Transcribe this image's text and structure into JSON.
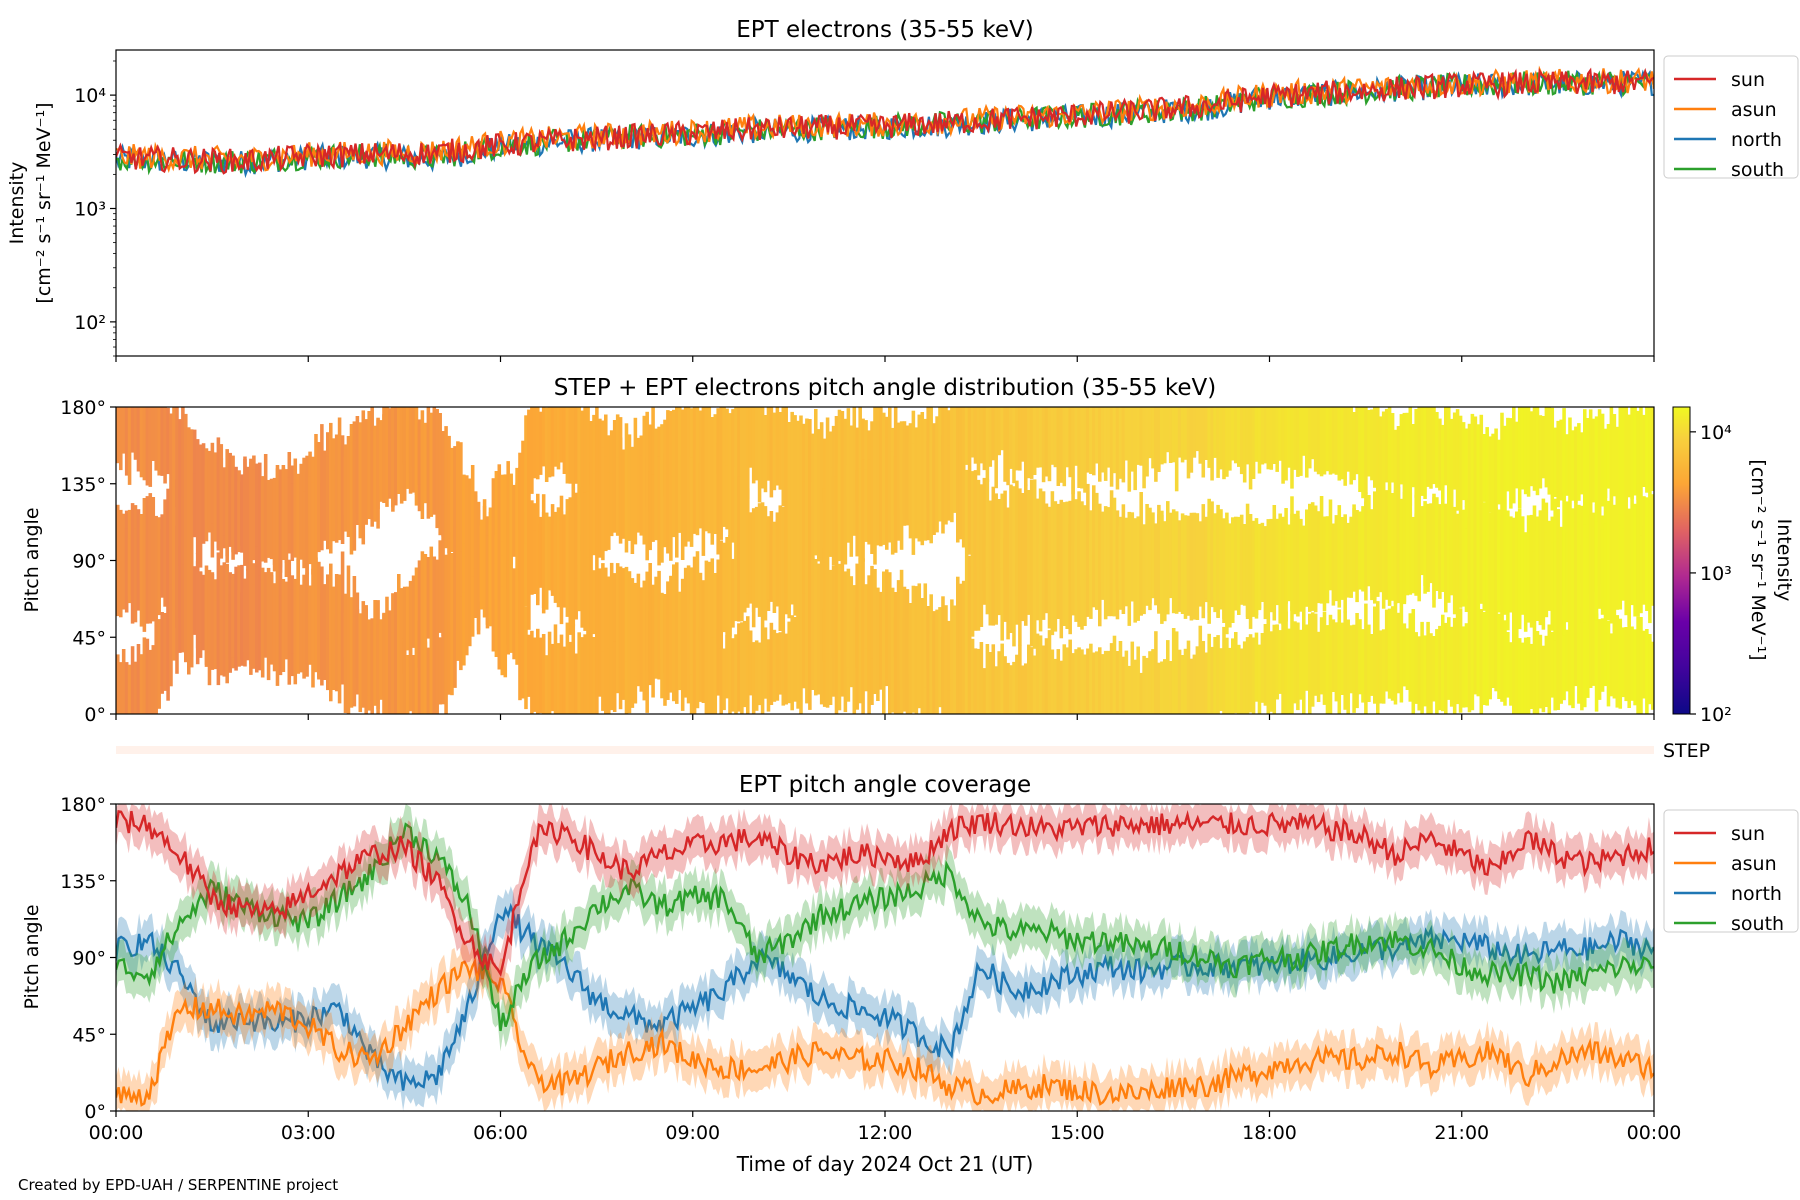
{
  "credit": "Created by EPD-UAH / SERPENTINE project",
  "colors": {
    "sun": "#d62728",
    "asun": "#ff7f0e",
    "north": "#1f77b4",
    "south": "#2ca02c"
  },
  "chart_data": [
    {
      "type": "line",
      "title": "EPT electrons (35-55 keV)",
      "ylabel": "Intensity",
      "ylabel_units": "[cm⁻² s⁻¹ sr⁻¹ MeV⁻¹]",
      "yscale": "log",
      "ylim": [
        50,
        25000
      ],
      "ytick_values": [
        100,
        1000,
        10000
      ],
      "ytick_labels": [
        "10²",
        "10³",
        "10⁴"
      ],
      "xlim_hours": [
        0,
        24
      ],
      "legend_position": "outside-right",
      "legend": [
        "sun",
        "asun",
        "north",
        "south"
      ],
      "x_hours": [
        0,
        1,
        2,
        3,
        4,
        5,
        6,
        7,
        8,
        9,
        10,
        11,
        12,
        13,
        14,
        15,
        16,
        17,
        18,
        19,
        20,
        21,
        22,
        23,
        24
      ],
      "series": [
        {
          "name": "sun",
          "values": [
            2800,
            2700,
            2600,
            2900,
            3000,
            3100,
            3600,
            4000,
            4300,
            4600,
            5000,
            5200,
            5300,
            5700,
            6200,
            6600,
            7200,
            8000,
            9800,
            10500,
            11500,
            12200,
            12600,
            12800,
            13000
          ]
        },
        {
          "name": "asun",
          "values": [
            2900,
            2800,
            2700,
            3000,
            3100,
            3200,
            3800,
            4200,
            4500,
            4800,
            5200,
            5400,
            5500,
            5900,
            6400,
            6800,
            7500,
            8300,
            10200,
            10900,
            11800,
            12600,
            13100,
            13300,
            13500
          ]
        },
        {
          "name": "north",
          "values": [
            2700,
            2600,
            2550,
            2800,
            2900,
            2700,
            3500,
            3900,
            4200,
            4400,
            4800,
            5000,
            5200,
            5500,
            6000,
            6400,
            7000,
            7600,
            9500,
            10300,
            11300,
            12000,
            12500,
            12700,
            12900
          ]
        },
        {
          "name": "south",
          "values": [
            2750,
            2650,
            2600,
            2850,
            2950,
            2800,
            3550,
            3950,
            4250,
            4500,
            4900,
            5100,
            5300,
            5600,
            6100,
            6500,
            7100,
            7700,
            9600,
            10400,
            11400,
            12100,
            12600,
            12800,
            13000
          ]
        }
      ]
    },
    {
      "type": "heatmap",
      "title": "STEP + EPT electrons pitch angle distribution (35-55 keV)",
      "ylabel": "Pitch angle",
      "ylim_deg": [
        0,
        180
      ],
      "ytick_labels": [
        "0°",
        "45°",
        "90°",
        "135°",
        "180°"
      ],
      "colorbar": {
        "label": "Intensity",
        "units": "[cm⁻² s⁻¹ sr⁻¹ MeV⁻¹]",
        "scale": "log",
        "range": [
          100,
          15000
        ],
        "tick_values": [
          100,
          1000,
          10000
        ],
        "tick_labels": [
          "10²",
          "10³",
          "10⁴"
        ],
        "colormap": "plasma-like"
      },
      "side_label": "STEP",
      "note": "Intensity rises from ~3e3 (00:00) to ~1.3e4 (24:00); white gaps where no sector coverage"
    },
    {
      "type": "line",
      "title": "EPT pitch angle coverage",
      "ylabel": "Pitch angle",
      "xlabel": "Time of day 2024 Oct 21 (UT)",
      "ylim_deg": [
        0,
        180
      ],
      "ytick_labels": [
        "0°",
        "45°",
        "90°",
        "135°",
        "180°"
      ],
      "xtick_labels": [
        "00:00",
        "03:00",
        "06:00",
        "09:00",
        "12:00",
        "15:00",
        "18:00",
        "21:00",
        "00:00"
      ],
      "legend_position": "outside-right",
      "legend": [
        "sun",
        "asun",
        "north",
        "south"
      ],
      "x_hours": [
        0,
        0.5,
        1,
        1.5,
        2,
        2.5,
        3,
        3.5,
        4,
        4.5,
        5,
        5.5,
        6,
        6.5,
        7,
        7.5,
        8,
        8.5,
        9,
        9.5,
        10,
        10.5,
        11,
        11.5,
        12,
        12.5,
        13,
        13.5,
        14,
        14.5,
        15,
        15.5,
        16,
        16.5,
        17,
        17.5,
        18,
        18.5,
        19,
        19.5,
        20,
        20.5,
        21,
        21.5,
        22,
        22.5,
        23,
        23.5,
        24
      ],
      "series": [
        {
          "name": "sun",
          "values": [
            170,
            168,
            150,
            125,
            118,
            115,
            128,
            140,
            150,
            155,
            135,
            100,
            80,
            160,
            165,
            150,
            140,
            150,
            155,
            158,
            160,
            150,
            145,
            150,
            150,
            145,
            165,
            170,
            168,
            165,
            166,
            168,
            168,
            168,
            168,
            168,
            168,
            168,
            165,
            160,
            150,
            160,
            150,
            140,
            160,
            150,
            145,
            150,
            155
          ]
        },
        {
          "name": "asun",
          "values": [
            8,
            10,
            60,
            60,
            55,
            60,
            50,
            35,
            30,
            50,
            70,
            85,
            75,
            20,
            15,
            25,
            35,
            40,
            30,
            25,
            25,
            30,
            35,
            30,
            30,
            25,
            15,
            10,
            12,
            15,
            12,
            10,
            10,
            15,
            15,
            20,
            25,
            30,
            30,
            30,
            35,
            25,
            30,
            35,
            20,
            30,
            35,
            30,
            25
          ]
        },
        {
          "name": "north",
          "values": [
            95,
            100,
            80,
            50,
            55,
            50,
            55,
            60,
            30,
            15,
            20,
            60,
            120,
            100,
            85,
            65,
            55,
            50,
            60,
            70,
            90,
            80,
            65,
            60,
            55,
            45,
            35,
            85,
            70,
            75,
            80,
            85,
            82,
            85,
            85,
            85,
            85,
            88,
            90,
            95,
            95,
            100,
            100,
            95,
            90,
            95,
            95,
            100,
            95
          ]
        },
        {
          "name": "south",
          "values": [
            85,
            80,
            110,
            130,
            120,
            115,
            110,
            125,
            140,
            165,
            150,
            120,
            50,
            85,
            100,
            120,
            130,
            120,
            125,
            125,
            90,
            100,
            115,
            120,
            125,
            130,
            140,
            110,
            105,
            105,
            100,
            100,
            95,
            95,
            90,
            85,
            90,
            90,
            95,
            100,
            100,
            95,
            85,
            80,
            80,
            75,
            80,
            85,
            85
          ]
        }
      ]
    }
  ]
}
